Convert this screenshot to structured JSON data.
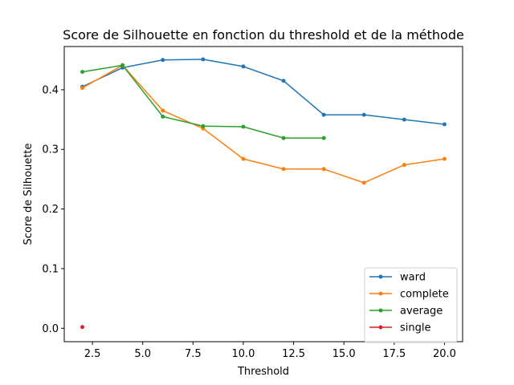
{
  "chart_data": {
    "type": "line",
    "title": "Score de Silhouette en fonction du threshold et de la méthode",
    "xlabel": "Threshold",
    "ylabel": "Score de Silhouette",
    "xlim": [
      1.1,
      20.9
    ],
    "ylim": [
      -0.0225,
      0.4725
    ],
    "xticks": [
      2.5,
      5.0,
      7.5,
      10.0,
      12.5,
      15.0,
      17.5,
      20.0
    ],
    "xtick_labels": [
      "2.5",
      "5.0",
      "7.5",
      "10.0",
      "12.5",
      "15.0",
      "17.5",
      "20.0"
    ],
    "yticks": [
      0.0,
      0.1,
      0.2,
      0.3,
      0.4
    ],
    "ytick_labels": [
      "0.0",
      "0.1",
      "0.2",
      "0.3",
      "0.4"
    ],
    "grid": false,
    "legend_position": "lower-right",
    "series": [
      {
        "name": "ward",
        "color": "#1f77b4",
        "x": [
          2,
          4,
          6,
          8,
          10,
          12,
          14,
          16,
          18,
          20
        ],
        "y": [
          0.405,
          0.437,
          0.45,
          0.451,
          0.439,
          0.415,
          0.358,
          0.358,
          0.35,
          0.342
        ]
      },
      {
        "name": "complete",
        "color": "#ff7f0e",
        "x": [
          2,
          4,
          6,
          8,
          10,
          12,
          14,
          16,
          18,
          20
        ],
        "y": [
          0.403,
          0.441,
          0.365,
          0.335,
          0.284,
          0.267,
          0.267,
          0.244,
          0.274,
          0.284
        ]
      },
      {
        "name": "average",
        "color": "#2ca02c",
        "x": [
          2,
          4,
          6,
          8,
          10,
          12,
          14
        ],
        "y": [
          0.43,
          0.441,
          0.355,
          0.339,
          0.338,
          0.319,
          0.319
        ]
      },
      {
        "name": "single",
        "color": "#d62728",
        "x": [
          2
        ],
        "y": [
          0.002
        ]
      }
    ]
  }
}
